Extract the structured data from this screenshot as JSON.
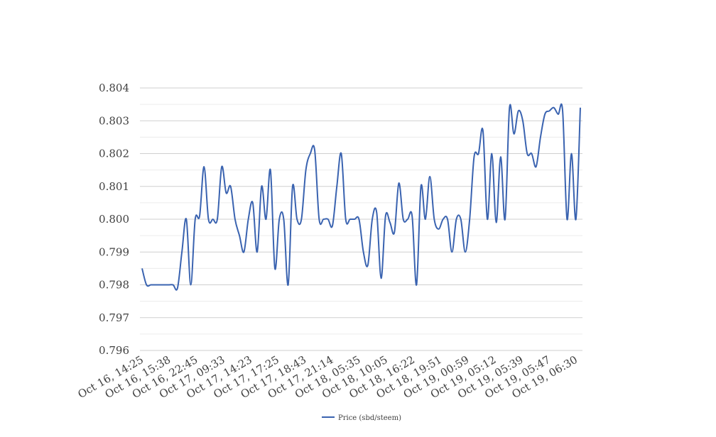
{
  "chart_data": {
    "type": "line",
    "title": "",
    "xlabel": "",
    "ylabel": "",
    "ylim": [
      0.796,
      0.804
    ],
    "yticks": [
      "0.796",
      "0.797",
      "0.798",
      "0.799",
      "0.800",
      "0.801",
      "0.802",
      "0.803",
      "0.804"
    ],
    "xtick_labels": [
      "Oct 16, 14:25",
      "Oct 16, 15:38",
      "Oct 16, 22:45",
      "Oct 17, 09:33",
      "Oct 17, 14:23",
      "Oct 17, 17:25",
      "Oct 17, 18:43",
      "Oct 17, 21:14",
      "Oct 18, 05:35",
      "Oct 18, 10:05",
      "Oct 18, 16:22",
      "Oct 18, 19:51",
      "Oct 19, 00:59",
      "Oct 19, 05:12",
      "Oct 19, 05:39",
      "Oct 19, 05:47",
      "Oct 19, 06:30"
    ],
    "grid": true,
    "legend": "bottom",
    "line_color": "#3a63b0",
    "series": [
      {
        "name": "Price (sbd/steem)",
        "values": [
          0.7985,
          0.798,
          0.798,
          0.798,
          0.798,
          0.798,
          0.798,
          0.798,
          0.7979,
          0.799,
          0.8,
          0.798,
          0.8,
          0.8001,
          0.8016,
          0.8,
          0.8,
          0.8,
          0.8016,
          0.8008,
          0.801,
          0.8,
          0.7995,
          0.799,
          0.8,
          0.8005,
          0.799,
          0.801,
          0.8,
          0.8015,
          0.7985,
          0.8,
          0.8,
          0.798,
          0.801,
          0.8,
          0.8,
          0.8015,
          0.802,
          0.8021,
          0.8,
          0.8,
          0.8,
          0.7998,
          0.801,
          0.802,
          0.8,
          0.8,
          0.8,
          0.8,
          0.799,
          0.7986,
          0.8,
          0.8002,
          0.7982,
          0.8001,
          0.7999,
          0.7996,
          0.8011,
          0.8,
          0.8,
          0.8001,
          0.798,
          0.801,
          0.8,
          0.8013,
          0.8,
          0.7997,
          0.8,
          0.8,
          0.799,
          0.8,
          0.8,
          0.799,
          0.8,
          0.8019,
          0.802,
          0.8027,
          0.8,
          0.802,
          0.7999,
          0.8019,
          0.8,
          0.8034,
          0.8026,
          0.8033,
          0.803,
          0.802,
          0.802,
          0.8016,
          0.8025,
          0.8032,
          0.8033,
          0.8034,
          0.8032,
          0.8033,
          0.8,
          0.802,
          0.8,
          0.8034
        ]
      }
    ]
  }
}
